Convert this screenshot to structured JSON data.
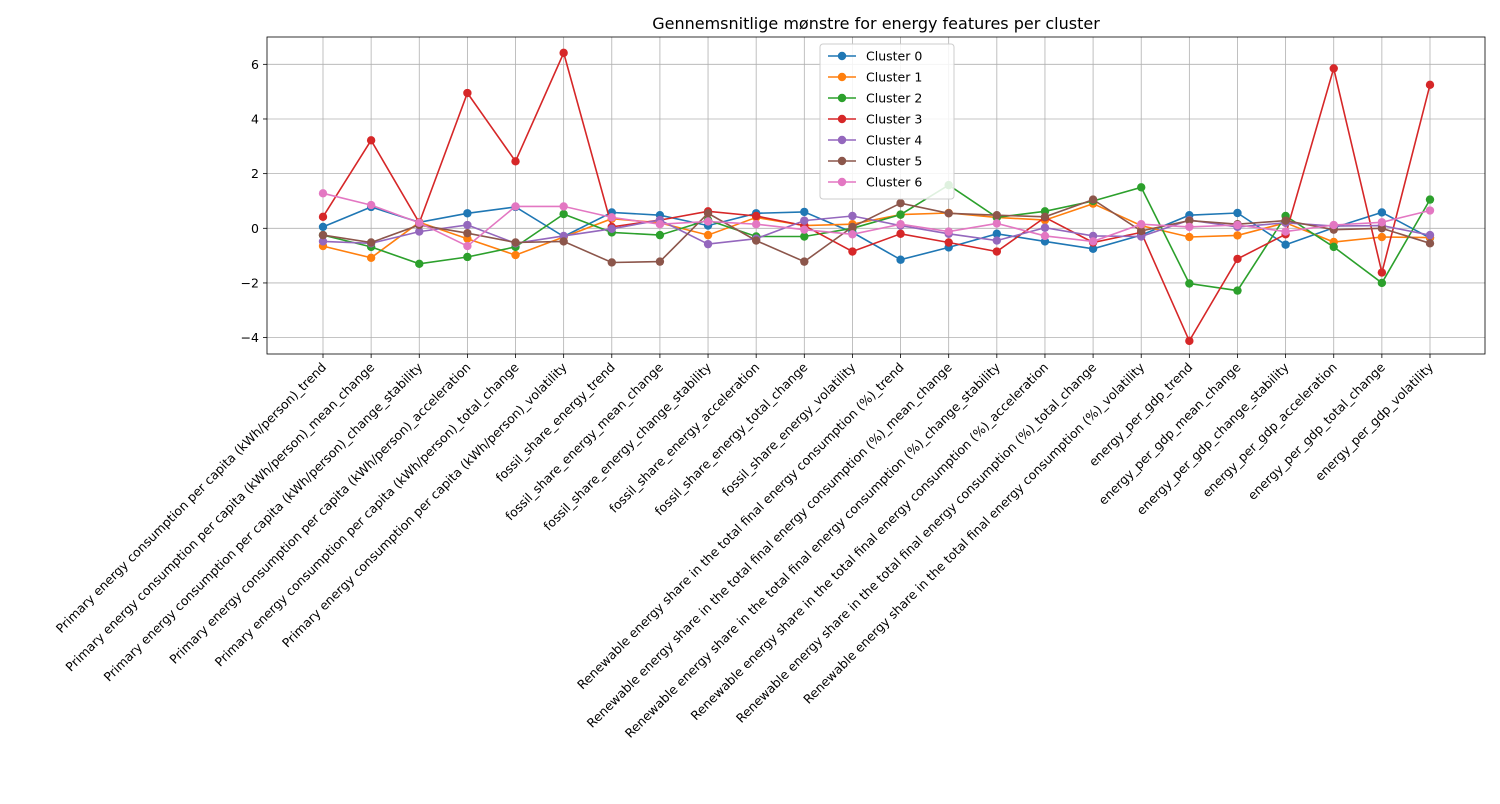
{
  "chart_data": {
    "type": "line",
    "title": "Gennemsnitlige mønstre for energy features per cluster",
    "xlabel": "",
    "ylabel": "",
    "ylim": [
      -4.6,
      7.0
    ],
    "yticks": [
      -4,
      -2,
      0,
      2,
      4,
      6
    ],
    "grid": true,
    "legend": "top-center",
    "categories": [
      "Primary energy consumption per capita (kWh/person)_trend",
      "Primary energy consumption per capita (kWh/person)_mean_change",
      "Primary energy consumption per capita (kWh/person)_change_stability",
      "Primary energy consumption per capita (kWh/person)_acceleration",
      "Primary energy consumption per capita (kWh/person)_total_change",
      "Primary energy consumption per capita (kWh/person)_volatility",
      "fossil_share_energy_trend",
      "fossil_share_energy_mean_change",
      "fossil_share_energy_change_stability",
      "fossil_share_energy_acceleration",
      "fossil_share_energy_total_change",
      "fossil_share_energy_volatility",
      "Renewable energy share in the total final energy consumption (%)_trend",
      "Renewable energy share in the total final energy consumption (%)_mean_change",
      "Renewable energy share in the total final energy consumption (%)_change_stability",
      "Renewable energy share in the total final energy consumption (%)_acceleration",
      "Renewable energy share in the total final energy consumption (%)_total_change",
      "Renewable energy share in the total final energy consumption (%)_volatility",
      "energy_per_gdp_trend",
      "energy_per_gdp_mean_change",
      "energy_per_gdp_change_stability",
      "energy_per_gdp_acceleration",
      "energy_per_gdp_total_change",
      "energy_per_gdp_volatility"
    ],
    "series": [
      {
        "name": "Cluster 0",
        "color": "#1f77b4",
        "values": [
          0.05,
          0.78,
          0.22,
          0.55,
          0.78,
          -0.3,
          0.58,
          0.48,
          0.1,
          0.55,
          0.6,
          -0.15,
          -1.15,
          -0.7,
          -0.2,
          -0.48,
          -0.75,
          -0.25,
          0.48,
          0.56,
          -0.6,
          0.02,
          0.58,
          -0.35
        ]
      },
      {
        "name": "Cluster 1",
        "color": "#ff7f0e",
        "values": [
          -0.65,
          -1.08,
          0.22,
          -0.38,
          -0.98,
          -0.32,
          0.35,
          0.2,
          -0.25,
          0.4,
          0.1,
          0.15,
          0.5,
          0.56,
          0.4,
          0.3,
          0.9,
          0.1,
          -0.32,
          -0.26,
          0.2,
          -0.5,
          -0.32,
          -0.34
        ]
      },
      {
        "name": "Cluster 2",
        "color": "#2ca02c",
        "values": [
          -0.25,
          -0.68,
          -1.3,
          -1.05,
          -0.68,
          0.52,
          -0.15,
          -0.25,
          0.3,
          -0.3,
          -0.3,
          0.0,
          0.5,
          1.58,
          0.4,
          0.62,
          1.0,
          1.5,
          -2.02,
          -2.28,
          0.45,
          -0.68,
          -2.0,
          1.05
        ]
      },
      {
        "name": "Cluster 3",
        "color": "#d62728",
        "values": [
          0.42,
          3.22,
          0.2,
          4.95,
          2.45,
          6.42,
          0.05,
          0.3,
          0.62,
          0.45,
          0.1,
          -0.85,
          -0.2,
          -0.52,
          -0.85,
          0.4,
          -0.52,
          -0.15,
          -4.12,
          -1.12,
          -0.22,
          5.85,
          -1.62,
          5.25
        ]
      },
      {
        "name": "Cluster 4",
        "color": "#9467bd",
        "values": [
          -0.48,
          -0.55,
          -0.12,
          0.12,
          -0.55,
          -0.28,
          -0.02,
          0.3,
          -0.58,
          -0.38,
          0.28,
          0.45,
          0.1,
          -0.2,
          -0.45,
          0.02,
          -0.28,
          -0.3,
          0.3,
          0.05,
          0.2,
          0.08,
          0.1,
          -0.25
        ]
      },
      {
        "name": "Cluster 5",
        "color": "#8c564b",
        "values": [
          -0.25,
          -0.52,
          0.12,
          -0.18,
          -0.52,
          -0.48,
          -1.25,
          -1.22,
          0.55,
          -0.45,
          -1.22,
          0.05,
          0.92,
          0.55,
          0.48,
          0.42,
          1.05,
          -0.1,
          0.28,
          0.15,
          0.28,
          -0.05,
          0.0,
          -0.55
        ]
      },
      {
        "name": "Cluster 6",
        "color": "#e377c2",
        "values": [
          1.28,
          0.85,
          0.2,
          -0.65,
          0.8,
          0.8,
          0.4,
          0.15,
          0.25,
          0.15,
          -0.05,
          -0.22,
          0.15,
          -0.12,
          0.18,
          -0.28,
          -0.48,
          0.15,
          0.05,
          0.12,
          -0.12,
          0.12,
          0.22,
          0.65
        ]
      }
    ]
  }
}
